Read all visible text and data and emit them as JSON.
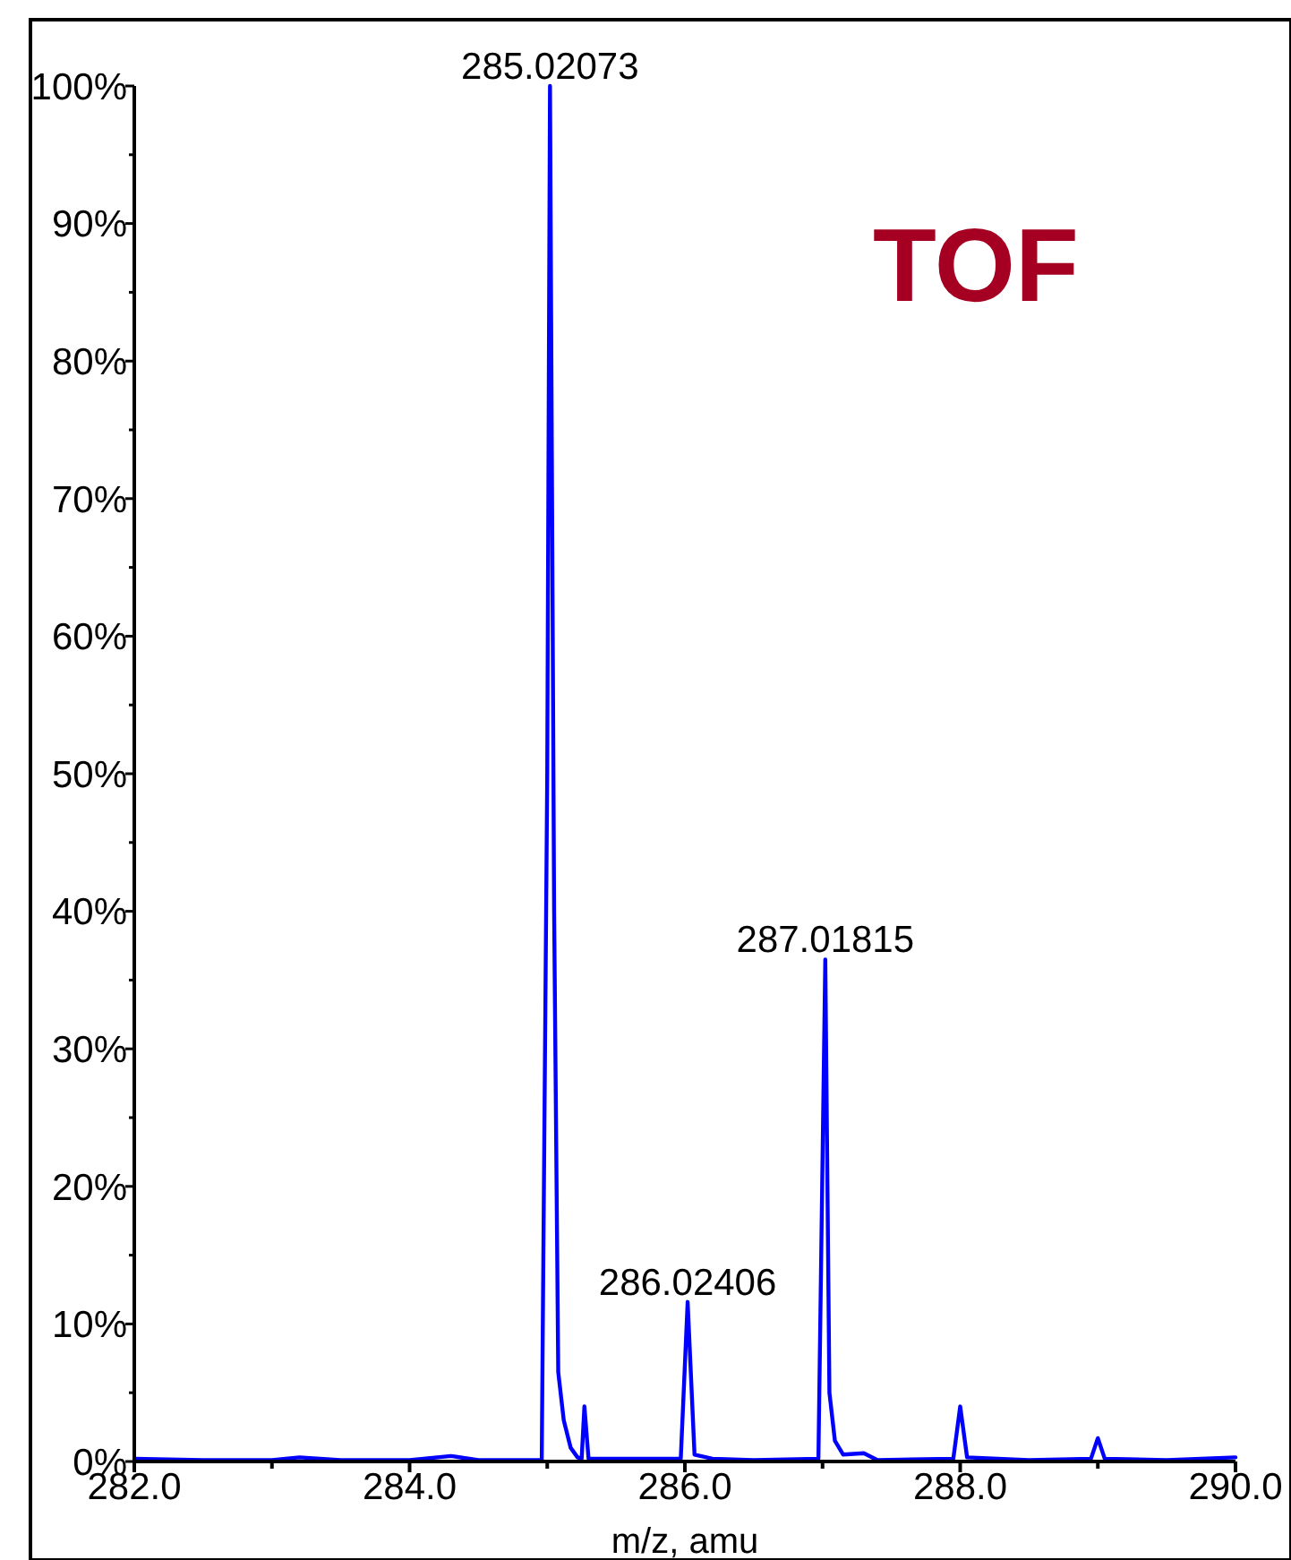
{
  "chart_data": {
    "type": "line",
    "xlabel": "m/z, amu",
    "x": [
      282.0,
      282.5,
      283.0,
      283.2,
      283.5,
      284.0,
      284.3,
      284.5,
      284.96,
      285.0,
      285.02,
      285.05,
      285.08,
      285.12,
      285.17,
      285.22,
      285.25,
      285.27,
      285.3,
      285.5,
      285.97,
      286.02,
      286.07,
      286.2,
      286.5,
      286.97,
      287.02,
      287.05,
      287.09,
      287.15,
      287.3,
      287.4,
      287.95,
      288.0,
      288.05,
      288.5,
      288.95,
      289.0,
      289.05,
      289.5,
      290.0
    ],
    "series": [
      {
        "color": "#0000ff",
        "values": [
          0.2,
          0.1,
          0.1,
          0.3,
          0.1,
          0.1,
          0.4,
          0.1,
          0.1,
          50,
          100,
          40,
          6.5,
          3,
          1,
          0.3,
          0.2,
          4.0,
          0.2,
          0.2,
          0.2,
          11.6,
          0.5,
          0.2,
          0.1,
          0.2,
          36.5,
          5,
          1.5,
          0.5,
          0.6,
          0.1,
          0.2,
          4.0,
          0.3,
          0.1,
          0.2,
          1.7,
          0.2,
          0.1,
          0.3
        ]
      }
    ],
    "xlim": [
      282.0,
      290.0
    ],
    "xticks": [
      {
        "value": 282,
        "label": "282.0"
      },
      {
        "value": 283,
        "label": null
      },
      {
        "value": 284,
        "label": "284.0"
      },
      {
        "value": 285,
        "label": null
      },
      {
        "value": 286,
        "label": "286.0"
      },
      {
        "value": 287,
        "label": null
      },
      {
        "value": 288,
        "label": "288.0"
      },
      {
        "value": 289,
        "label": null
      },
      {
        "value": 290,
        "label": "290.0"
      }
    ],
    "ylim": [
      0,
      100
    ],
    "yticks": [
      {
        "value": 0,
        "label": "0%"
      },
      {
        "value": 5,
        "label": null
      },
      {
        "value": 10,
        "label": "10%"
      },
      {
        "value": 15,
        "label": null
      },
      {
        "value": 20,
        "label": "20%"
      },
      {
        "value": 25,
        "label": null
      },
      {
        "value": 30,
        "label": "30%"
      },
      {
        "value": 35,
        "label": null
      },
      {
        "value": 40,
        "label": "40%"
      },
      {
        "value": 45,
        "label": null
      },
      {
        "value": 50,
        "label": "50%"
      },
      {
        "value": 55,
        "label": null
      },
      {
        "value": 60,
        "label": "60%"
      },
      {
        "value": 65,
        "label": null
      },
      {
        "value": 70,
        "label": "70%"
      },
      {
        "value": 75,
        "label": null
      },
      {
        "value": 80,
        "label": "80%"
      },
      {
        "value": 85,
        "label": null
      },
      {
        "value": 90,
        "label": "90%"
      },
      {
        "value": 95,
        "label": null
      },
      {
        "value": 100,
        "label": "100%"
      }
    ],
    "annotations": [
      {
        "text": "285.02073",
        "x": 285.02,
        "y": 100
      },
      {
        "text": "286.02406",
        "x": 286.02,
        "y": 11.6
      },
      {
        "text": "287.01815",
        "x": 287.02,
        "y": 36.5
      },
      "TOF"
    ],
    "grid": false,
    "marker": "none",
    "line_style": "solid"
  }
}
